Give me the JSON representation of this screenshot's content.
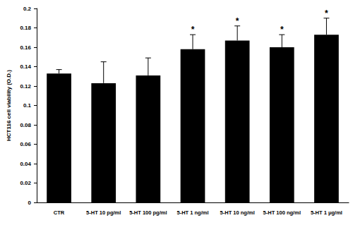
{
  "chart_data": {
    "type": "bar",
    "y_label": "HCT116 cell viability (O.D.)",
    "categories": [
      "CTR",
      "5-HT 10 pg/ml",
      "5-HT 100 pg/ml",
      "5-HT 1 ng/ml",
      "5-HT 10 ng/ml",
      "5-HT 100 ng/ml",
      "5-HT 1 μg/ml"
    ],
    "values": [
      0.133,
      0.123,
      0.131,
      0.158,
      0.167,
      0.16,
      0.173
    ],
    "errors": [
      0.004,
      0.022,
      0.018,
      0.015,
      0.015,
      0.013,
      0.017
    ],
    "annotations": [
      null,
      null,
      null,
      "*",
      "*",
      "*",
      "*"
    ],
    "color": "#000000",
    "ylim": [
      0,
      0.2
    ],
    "yticks": [
      0,
      0.02,
      0.04,
      0.06,
      0.08,
      0.1,
      0.12,
      0.14,
      0.16,
      0.18,
      0.2
    ],
    "grid": false
  }
}
